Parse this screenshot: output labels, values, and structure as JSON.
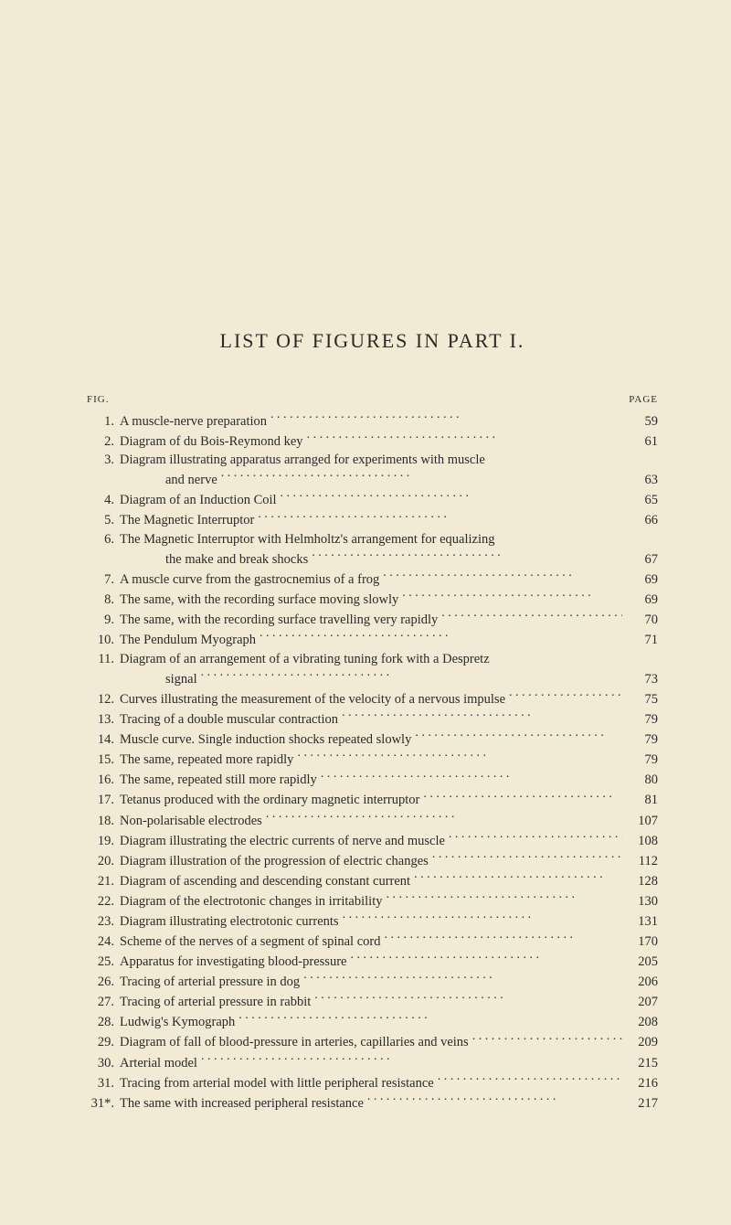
{
  "title": "LIST OF FIGURES IN PART I.",
  "header_left": "FIG.",
  "header_right": "PAGE",
  "entries": [
    {
      "num": "1.",
      "text": "A muscle-nerve preparation",
      "page": "59"
    },
    {
      "num": "2.",
      "text": "Diagram of du Bois-Reymond key",
      "page": "61"
    },
    {
      "num": "3.",
      "text": "Diagram illustrating apparatus arranged for experiments with muscle",
      "cont": "and nerve",
      "page": "63"
    },
    {
      "num": "4.",
      "text": "Diagram of an Induction Coil",
      "page": "65"
    },
    {
      "num": "5.",
      "text": "The Magnetic Interruptor",
      "page": "66"
    },
    {
      "num": "6.",
      "text": "The Magnetic Interruptor with Helmholtz's arrangement for equalizing",
      "cont": "the make and break shocks",
      "page": "67"
    },
    {
      "num": "7.",
      "text": "A muscle curve from the gastrocnemius of a frog",
      "page": "69"
    },
    {
      "num": "8.",
      "text": "The same, with the recording surface moving slowly",
      "page": "69"
    },
    {
      "num": "9.",
      "text": "The same, with the recording surface travelling very rapidly",
      "page": "70"
    },
    {
      "num": "10.",
      "text": "The Pendulum Myograph",
      "page": "71"
    },
    {
      "num": "11.",
      "text": "Diagram of an arrangement of a vibrating tuning fork with a Despretz",
      "cont": "signal",
      "page": "73"
    },
    {
      "num": "12.",
      "text": "Curves illustrating the measurement of the velocity of a nervous impulse",
      "page": "75"
    },
    {
      "num": "13.",
      "text": "Tracing of a double muscular contraction",
      "page": "79"
    },
    {
      "num": "14.",
      "text": "Muscle curve.  Single induction shocks repeated slowly",
      "page": "79"
    },
    {
      "num": "15.",
      "text": "The same, repeated more rapidly",
      "page": "79"
    },
    {
      "num": "16.",
      "text": "The same, repeated still more rapidly",
      "page": "80"
    },
    {
      "num": "17.",
      "text": "Tetanus produced with the ordinary magnetic interruptor",
      "page": "81"
    },
    {
      "num": "18.",
      "text": "Non-polarisable electrodes",
      "page": "107"
    },
    {
      "num": "19.",
      "text": "Diagram illustrating the electric currents of nerve and muscle",
      "page": "108"
    },
    {
      "num": "20.",
      "text": "Diagram illustration of the progression of electric changes",
      "page": "112"
    },
    {
      "num": "21.",
      "text": "Diagram of ascending and descending constant current",
      "page": "128"
    },
    {
      "num": "22.",
      "text": "Diagram of the electrotonic changes in irritability",
      "page": "130"
    },
    {
      "num": "23.",
      "text": "Diagram illustrating electrotonic currents",
      "page": "131"
    },
    {
      "num": "24.",
      "text": "Scheme of the nerves of a segment of spinal cord",
      "page": "170"
    },
    {
      "num": "25.",
      "text": "Apparatus for investigating blood-pressure",
      "page": "205"
    },
    {
      "num": "26.",
      "text": "Tracing of arterial pressure in dog",
      "page": "206"
    },
    {
      "num": "27.",
      "text": "Tracing of arterial pressure in rabbit",
      "page": "207"
    },
    {
      "num": "28.",
      "text": "Ludwig's Kymograph",
      "page": "208"
    },
    {
      "num": "29.",
      "text": "Diagram of fall of blood-pressure in arteries, capillaries and veins",
      "page": "209"
    },
    {
      "num": "30.",
      "text": "Arterial model",
      "page": "215"
    },
    {
      "num": "31.",
      "text": "Tracing from arterial model with little peripheral resistance",
      "page": "216"
    },
    {
      "num": "31*.",
      "text": "The same with increased peripheral resistance",
      "page": "217"
    }
  ]
}
